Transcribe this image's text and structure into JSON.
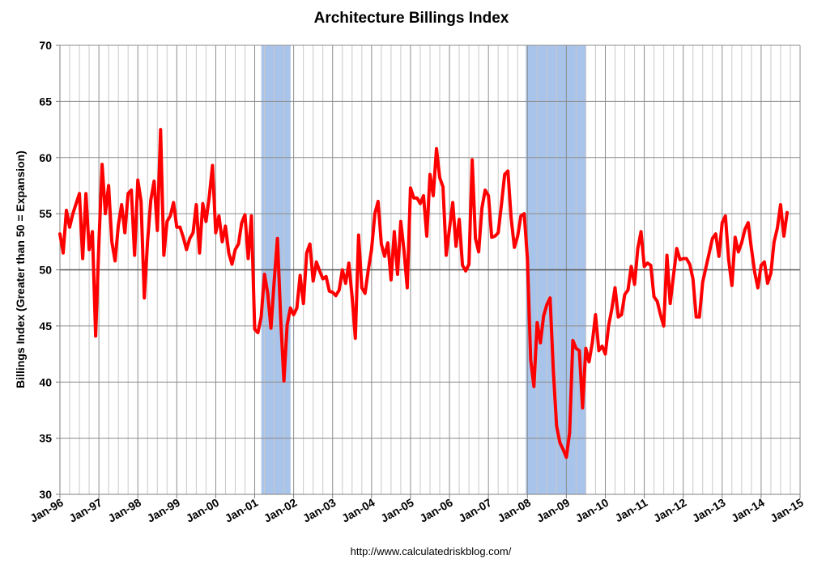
{
  "chart_data": {
    "type": "line",
    "title": "Architecture Billings Index",
    "xlabel": "",
    "ylabel": "Billings Index (Greater than 50 = Expansion)",
    "source": "http://www.calculatedriskblog.com/",
    "ylim": [
      30,
      70
    ],
    "yticks": [
      30,
      35,
      40,
      45,
      50,
      55,
      60,
      65,
      70
    ],
    "xlim": [
      1996.0,
      2015.0
    ],
    "xticks": [
      {
        "label": "Jan-96",
        "year": 1996
      },
      {
        "label": "Jan-97",
        "year": 1997
      },
      {
        "label": "Jan-98",
        "year": 1998
      },
      {
        "label": "Jan-99",
        "year": 1999
      },
      {
        "label": "Jan-00",
        "year": 2000
      },
      {
        "label": "Jan-01",
        "year": 2001
      },
      {
        "label": "Jan-02",
        "year": 2002
      },
      {
        "label": "Jan-03",
        "year": 2003
      },
      {
        "label": "Jan-04",
        "year": 2004
      },
      {
        "label": "Jan-05",
        "year": 2005
      },
      {
        "label": "Jan-06",
        "year": 2006
      },
      {
        "label": "Jan-07",
        "year": 2007
      },
      {
        "label": "Jan-08",
        "year": 2008
      },
      {
        "label": "Jan-09",
        "year": 2009
      },
      {
        "label": "Jan-10",
        "year": 2010
      },
      {
        "label": "Jan-11",
        "year": 2011
      },
      {
        "label": "Jan-12",
        "year": 2012
      },
      {
        "label": "Jan-13",
        "year": 2013
      },
      {
        "label": "Jan-14",
        "year": 2014
      },
      {
        "label": "Jan-15",
        "year": 2015
      }
    ],
    "reference_line": 50,
    "recessions": [
      {
        "start": 2001.17,
        "end": 2001.92
      },
      {
        "start": 2007.96,
        "end": 2009.5
      }
    ],
    "line_color": "#ff0000",
    "recession_color": "#a9c4ea",
    "series": [
      {
        "name": "Architecture Billings Index",
        "start": 1996.0,
        "step_months": 1,
        "values": [
          53.2,
          51.5,
          55.3,
          53.8,
          55.0,
          55.9,
          56.8,
          51.0,
          56.8,
          51.8,
          53.4,
          44.1,
          52.3,
          59.4,
          55.0,
          57.5,
          52.5,
          50.8,
          54.0,
          55.8,
          53.3,
          56.8,
          57.1,
          51.3,
          58.0,
          56.1,
          47.5,
          52.5,
          56.2,
          57.9,
          53.5,
          62.5,
          51.3,
          54.3,
          54.8,
          56.0,
          53.8,
          53.8,
          52.9,
          51.8,
          52.8,
          53.3,
          55.8,
          51.5,
          55.9,
          54.3,
          56.5,
          59.3,
          53.3,
          54.8,
          52.5,
          53.9,
          51.5,
          50.5,
          51.8,
          52.3,
          54.2,
          54.9,
          51.0,
          54.8,
          44.7,
          44.4,
          45.8,
          49.6,
          47.9,
          44.8,
          49.0,
          52.8,
          45.7,
          40.1,
          45.1,
          46.6,
          46.0,
          46.6,
          49.5,
          47.0,
          51.5,
          52.3,
          49.0,
          50.7,
          49.9,
          49.2,
          49.4,
          48.1,
          48.0,
          47.7,
          48.2,
          50.0,
          48.8,
          50.6,
          47.6,
          43.9,
          53.1,
          48.4,
          47.9,
          50.0,
          51.8,
          55.0,
          56.1,
          52.3,
          51.2,
          52.4,
          49.1,
          53.4,
          49.6,
          54.3,
          51.7,
          48.4,
          57.3,
          56.4,
          56.4,
          55.9,
          56.6,
          53.0,
          58.5,
          56.6,
          60.8,
          58.2,
          57.4,
          51.3,
          53.7,
          56.0,
          52.1,
          54.5,
          50.4,
          49.9,
          50.5,
          59.8,
          52.8,
          51.6,
          55.5,
          57.1,
          56.6,
          52.9,
          53.0,
          53.3,
          55.8,
          58.5,
          58.8,
          54.6,
          52.0,
          53.0,
          54.8,
          55.0,
          51.0,
          42.0,
          39.6,
          45.3,
          43.5,
          45.9,
          46.9,
          47.5,
          41.0,
          36.1,
          34.6,
          34.0,
          33.3,
          35.5,
          43.7,
          43.0,
          42.8,
          37.7,
          43.0,
          41.8,
          43.5,
          46.0,
          42.8,
          43.2,
          42.5,
          45.0,
          46.5,
          48.4,
          45.8,
          46.0,
          47.8,
          48.2,
          50.3,
          48.7,
          51.9,
          53.4,
          50.3,
          50.6,
          50.4,
          47.6,
          47.2,
          46.0,
          45.0,
          51.3,
          47.0,
          49.5,
          51.9,
          50.9,
          51.0,
          51.0,
          50.5,
          49.2,
          45.8,
          45.8,
          48.9,
          50.2,
          51.5,
          52.8,
          53.2,
          51.2,
          54.2,
          54.8,
          50.9,
          48.6,
          52.9,
          51.6,
          52.4,
          53.6,
          54.2,
          51.9,
          49.8,
          48.4,
          50.4,
          50.7,
          48.8,
          49.7,
          52.5,
          53.7,
          55.8,
          53.0,
          55.1
        ]
      }
    ]
  }
}
